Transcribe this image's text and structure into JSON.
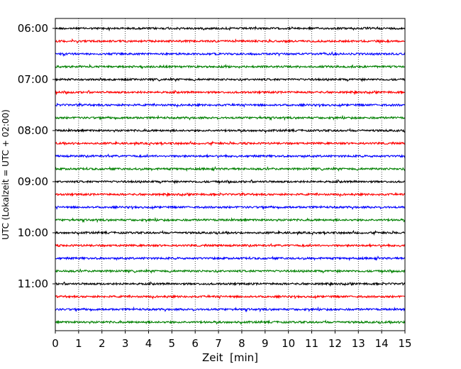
{
  "chart_data": {
    "type": "line",
    "subtype": "seismogram-helicorder",
    "xlabel": "Zeit  [min]",
    "ylabel": "UTC (Lokalzeit = UTC + 02:00)",
    "xlim": [
      0,
      15
    ],
    "x_ticks": [
      "0",
      "1",
      "2",
      "3",
      "4",
      "5",
      "6",
      "7",
      "8",
      "9",
      "10",
      "11",
      "12",
      "13",
      "14",
      "15"
    ],
    "y_tick_labels": [
      "06:00",
      "07:00",
      "08:00",
      "09:00",
      "10:00",
      "11:00"
    ],
    "y_tick_rows": [
      0,
      4,
      8,
      12,
      16,
      20
    ],
    "trace_start_times": [
      "06:00",
      "06:15",
      "06:30",
      "06:45",
      "07:00",
      "07:15",
      "07:30",
      "07:45",
      "08:00",
      "08:15",
      "08:30",
      "08:45",
      "09:00",
      "09:15",
      "09:30",
      "09:45",
      "10:00",
      "10:15",
      "10:30",
      "10:45",
      "11:00",
      "11:15",
      "11:30",
      "11:45"
    ],
    "trace_colors": [
      "#000000",
      "#ff0000",
      "#0000ff",
      "#008000"
    ],
    "grid": "vertical-dotted"
  }
}
